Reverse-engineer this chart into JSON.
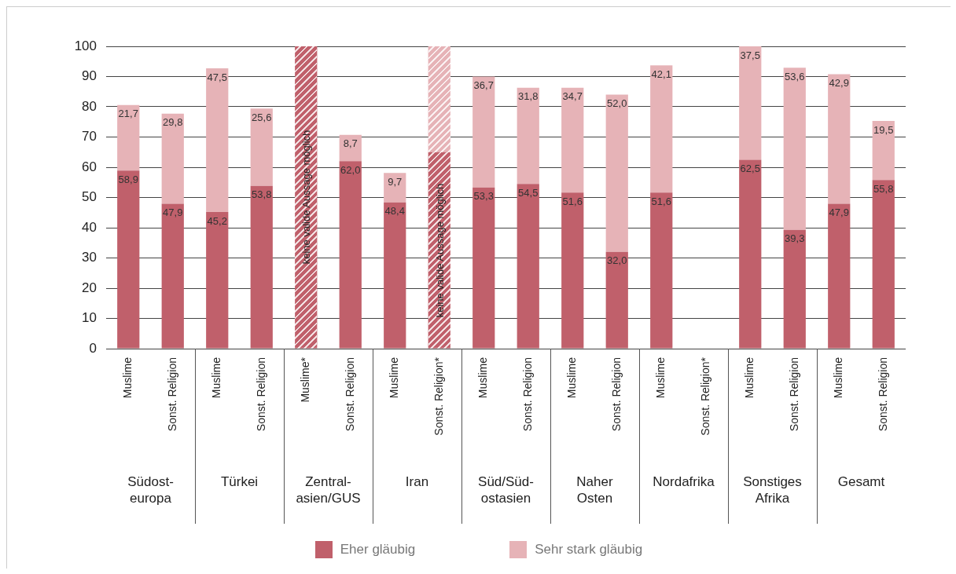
{
  "chart_data": [
    {
      "type": "bar",
      "stacked": true,
      "title": "Südost-europa",
      "categories": [
        "Muslime",
        "Sonst. Religion"
      ],
      "series": [
        {
          "name": "Eher gläubig",
          "color": "#c0606b",
          "values": [
            58.9,
            47.9
          ],
          "value_labels": [
            "58,9",
            "47,9"
          ]
        },
        {
          "name": "Sehr stark gläubig",
          "color": "#e6b3b7",
          "values": [
            21.7,
            29.8
          ],
          "value_labels": [
            "21,7",
            "29,8"
          ]
        }
      ],
      "ylim": [
        0,
        100
      ],
      "yticks": [
        0,
        10,
        20,
        30,
        40,
        50,
        60,
        70,
        80,
        90,
        100
      ],
      "grid": "y",
      "legend": "bottom"
    },
    {
      "type": "bar",
      "stacked": true,
      "title": "Türkei",
      "categories": [
        "Muslime",
        "Sonst. Religion"
      ],
      "series": [
        {
          "color": "#c0606b",
          "values": [
            45.2,
            53.8
          ],
          "value_labels": [
            "45,2",
            "53,8"
          ]
        },
        {
          "color": "#e6b3b7",
          "values": [
            47.5,
            25.6
          ],
          "value_labels": [
            "47,5",
            "25,6"
          ]
        }
      ],
      "ylim": [
        0,
        100
      ],
      "yticks": [
        0,
        10,
        20,
        30,
        40,
        50,
        60,
        70,
        80,
        90,
        100
      ],
      "grid": "y",
      "tick_labels": "x"
    },
    {
      "type": "bar",
      "stacked": true,
      "title": "Zentral-asien/GUS",
      "categories": [
        "Muslime*",
        "Sonst. Religion"
      ],
      "series": [
        {
          "color": "#c0606b",
          "values": [
            100,
            62.0
          ],
          "value_labels": [
            null,
            "62,0"
          ]
        },
        {
          "color": "#e6b3b7",
          "values": [
            null,
            8.7
          ],
          "value_labels": [
            null,
            "8,7"
          ]
        }
      ],
      "ylim": [
        0,
        100
      ],
      "yticks": [
        0,
        10,
        20,
        30,
        40,
        50,
        60,
        70,
        80,
        90,
        100
      ],
      "grid": "y",
      "tick_labels": "x",
      "annotations": [
        "keine valide Aussage möglich"
      ]
    },
    {
      "type": "bar",
      "stacked": true,
      "title": "Iran",
      "categories": [
        "Muslime",
        "Sonst. Religion*"
      ],
      "series": [
        {
          "color": "#c0606b",
          "values": [
            48.4,
            65
          ],
          "value_labels": [
            "48,4",
            null
          ]
        },
        {
          "color": "#e6b3b7",
          "values": [
            9.7,
            35
          ],
          "value_labels": [
            "9,7",
            null
          ]
        }
      ],
      "ylim": [
        0,
        100
      ],
      "yticks": [
        0,
        10,
        20,
        30,
        40,
        50,
        60,
        70,
        80,
        90,
        100
      ],
      "grid": "y",
      "tick_labels": "x",
      "annotations": [
        "keine valide Aussage möglich"
      ]
    },
    {
      "type": "bar",
      "stacked": true,
      "title": "Süd/Süd-ostasien",
      "categories": [
        "Muslime",
        "Sonst. Religion"
      ],
      "series": [
        {
          "color": "#c0606b",
          "values": [
            53.3,
            54.5
          ],
          "value_labels": [
            "53,3",
            "54,5"
          ]
        },
        {
          "color": "#e6b3b7",
          "values": [
            36.7,
            31.8
          ],
          "value_labels": [
            "36,7",
            "31,8"
          ]
        }
      ],
      "ylim": [
        0,
        100
      ],
      "yticks": [
        0,
        10,
        20,
        30,
        40,
        50,
        60,
        70,
        80,
        90,
        100
      ],
      "grid": "y",
      "tick_labels": "x"
    },
    {
      "type": "bar",
      "stacked": true,
      "title": "Naher Osten",
      "categories": [
        "Muslime",
        "Sonst. Religion"
      ],
      "series": [
        {
          "color": "#c0606b",
          "values": [
            51.6,
            32.0
          ],
          "value_labels": [
            "51,6",
            "32,0"
          ]
        },
        {
          "color": "#e6b3b7",
          "values": [
            34.7,
            52.0
          ],
          "value_labels": [
            "34,7",
            "52,0"
          ]
        }
      ],
      "ylim": [
        0,
        100
      ],
      "yticks": [
        0,
        10,
        20,
        30,
        40,
        50,
        60,
        70,
        80,
        90,
        100
      ],
      "grid": "y",
      "tick_labels": "x"
    },
    {
      "type": "bar",
      "stacked": true,
      "title": "Nordafrika",
      "categories": [
        "Muslime",
        "Sonst. Religion*"
      ],
      "series": [
        {
          "color": "#c0606b",
          "values": [
            51.6,
            null
          ],
          "value_labels": [
            "51,6",
            null
          ]
        },
        {
          "color": "#e6b3b7",
          "values": [
            42.1,
            null
          ],
          "value_labels": [
            "42,1",
            null
          ]
        }
      ],
      "ylim": [
        0,
        100
      ],
      "yticks": [
        0,
        10,
        20,
        30,
        40,
        50,
        60,
        70,
        80,
        90,
        100
      ],
      "grid": "y",
      "tick_labels": "x"
    },
    {
      "type": "bar",
      "stacked": true,
      "title": "Sonstiges Afrika",
      "categories": [
        "Muslime",
        "Sonst. Religion"
      ],
      "series": [
        {
          "color": "#c0606b",
          "values": [
            62.5,
            39.3
          ],
          "value_labels": [
            "62,5",
            "39,3"
          ]
        },
        {
          "color": "#e6b3b7",
          "values": [
            37.5,
            53.6
          ],
          "value_labels": [
            "37,5",
            "53,6"
          ]
        }
      ],
      "ylim": [
        0,
        100
      ],
      "yticks": [
        0,
        10,
        20,
        30,
        40,
        50,
        60,
        70,
        80,
        90,
        100
      ],
      "grid": "y",
      "tick_labels": "x"
    },
    {
      "type": "bar",
      "stacked": true,
      "title": "Gesamt",
      "categories": [
        "Muslime",
        "Sonst. Religion"
      ],
      "series": [
        {
          "color": "#c0606b",
          "values": [
            47.9,
            55.8
          ],
          "value_labels": [
            "47,9",
            "55,8"
          ]
        },
        {
          "color": "#e6b3b7",
          "values": [
            42.9,
            19.5
          ],
          "value_labels": [
            "42,9",
            "19,5"
          ]
        }
      ],
      "ylim": [
        0,
        100
      ],
      "yticks": [
        0,
        10,
        20,
        30,
        40,
        50,
        60,
        70,
        80,
        90,
        100
      ],
      "grid": "y",
      "tick_labels": "x"
    }
  ]
}
